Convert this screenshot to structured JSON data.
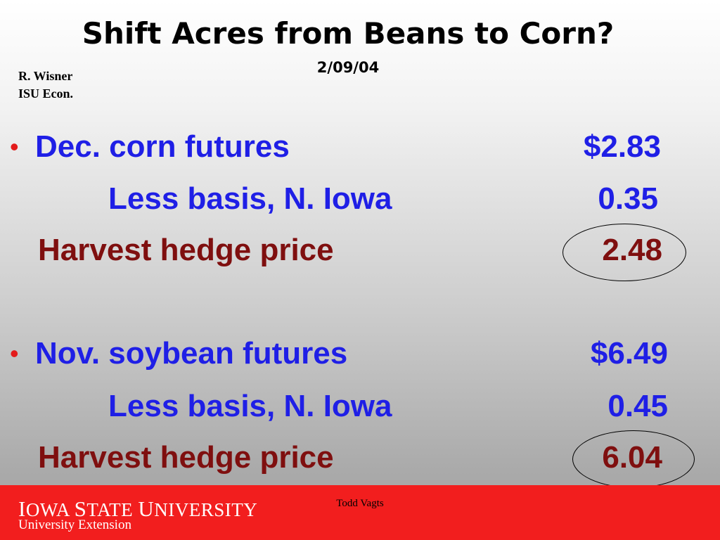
{
  "header": {
    "title": "Shift Acres from Beans to Corn?",
    "date": "2/09/04",
    "author_line1": "R. Wisner",
    "author_line2": "ISU Econ."
  },
  "corn": {
    "bullet": "•",
    "futures_label": "Dec. corn futures",
    "futures_value": "$2.83",
    "basis_label": "Less basis, N. Iowa",
    "basis_value": "0.35",
    "hedge_label": "Harvest hedge price",
    "hedge_value": "2.48"
  },
  "soybean": {
    "bullet": "•",
    "futures_label": "Nov. soybean futures",
    "futures_value": "$6.49",
    "basis_label": "Less basis, N. Iowa",
    "basis_value": "0.45",
    "hedge_label": "Harvest hedge price",
    "hedge_value": "6.04"
  },
  "footer": {
    "university_part1_cap": "I",
    "university_part1_rest": "OWA ",
    "university_part2_cap": "S",
    "university_part2_rest": "TATE ",
    "university_part3_cap": "U",
    "university_part3_rest": "NIVERSITY",
    "extension": "University Extension",
    "presenter": "Todd Vagts"
  },
  "colors": {
    "futures_text": "#1f1fe6",
    "hedge_text": "#7f0f0f",
    "bullet": "#e31b1b",
    "footer_band": "#f21e1e"
  }
}
